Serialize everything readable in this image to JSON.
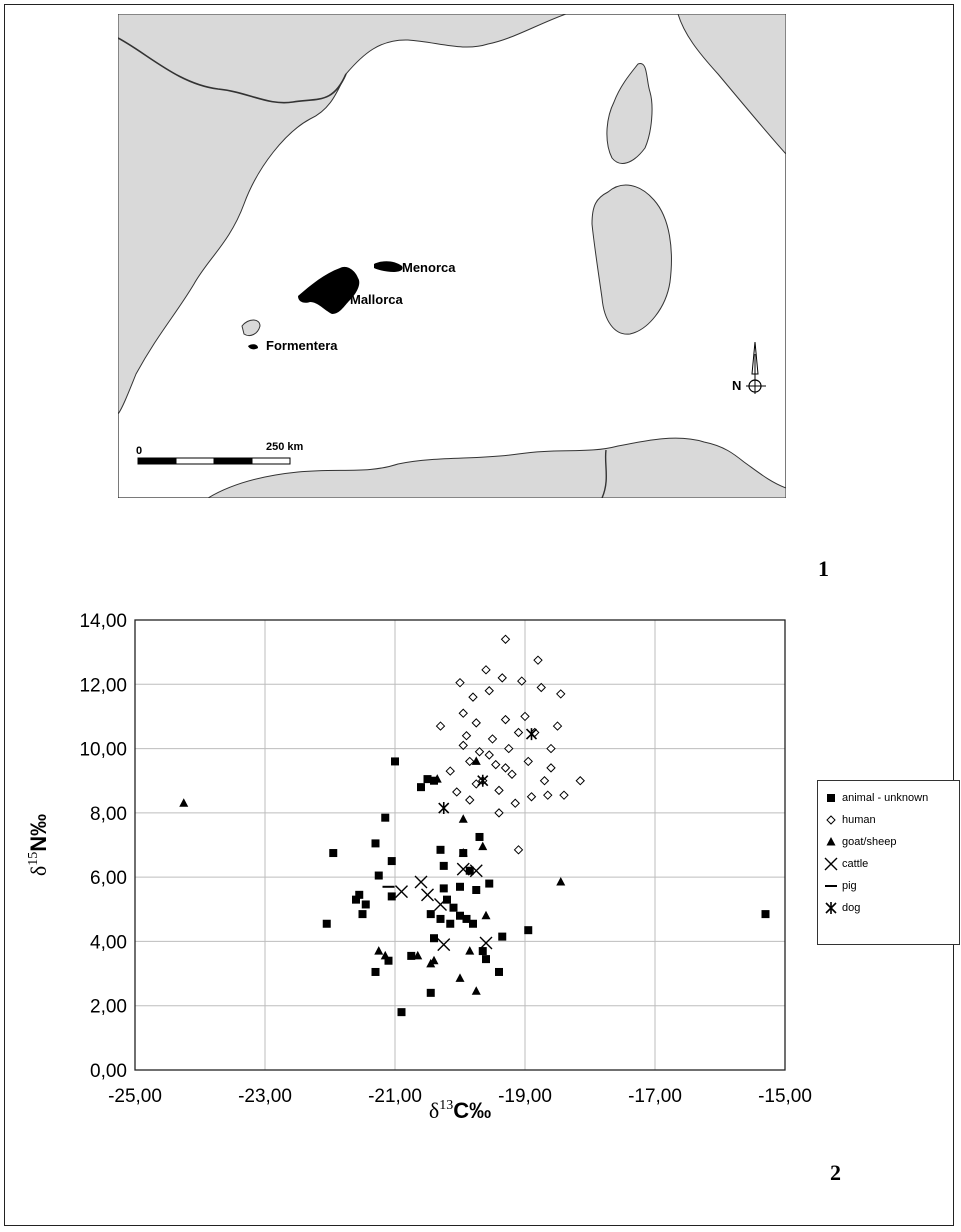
{
  "figure_labels": {
    "map": "1",
    "chart": "2"
  },
  "map": {
    "labels": {
      "menorca": "Menorca",
      "mallorca": "Mallorca",
      "formentera": "Formentera",
      "north": "N"
    },
    "scale_bar": {
      "start": "0",
      "end": "250 km"
    },
    "colors": {
      "land": "#d9d9d9",
      "islands": "#000000",
      "sea": "#ffffff"
    }
  },
  "chart_data": {
    "type": "scatter",
    "title": "",
    "xlabel": {
      "delta": "δ",
      "sup": "13",
      "rest": "C‰"
    },
    "ylabel": {
      "delta": "δ",
      "sup": "15",
      "rest": "N‰"
    },
    "xlim": [
      -25,
      -15
    ],
    "ylim": [
      0,
      14
    ],
    "xticks": [
      "-25,00",
      "-23,00",
      "-21,00",
      "-19,00",
      "-17,00",
      "-15,00"
    ],
    "yticks": [
      "0,00",
      "2,00",
      "4,00",
      "6,00",
      "8,00",
      "10,00",
      "12,00",
      "14,00"
    ],
    "grid": true,
    "legend_position": "right",
    "series": [
      {
        "name": "animal - unknown",
        "marker": "square",
        "points": [
          [
            -22.05,
            4.55
          ],
          [
            -21.95,
            6.75
          ],
          [
            -21.6,
            5.3
          ],
          [
            -21.55,
            5.45
          ],
          [
            -21.5,
            4.85
          ],
          [
            -21.45,
            5.15
          ],
          [
            -21.3,
            7.05
          ],
          [
            -21.25,
            6.05
          ],
          [
            -21.3,
            3.05
          ],
          [
            -21.15,
            7.85
          ],
          [
            -21.05,
            6.5
          ],
          [
            -21.05,
            5.4
          ],
          [
            -21.1,
            3.4
          ],
          [
            -21.0,
            9.6
          ],
          [
            -20.9,
            1.8
          ],
          [
            -20.75,
            3.55
          ],
          [
            -20.6,
            8.8
          ],
          [
            -20.5,
            9.05
          ],
          [
            -20.4,
            9.0
          ],
          [
            -20.45,
            4.85
          ],
          [
            -20.4,
            4.1
          ],
          [
            -20.45,
            2.4
          ],
          [
            -20.3,
            4.7
          ],
          [
            -20.25,
            5.65
          ],
          [
            -20.25,
            6.35
          ],
          [
            -20.2,
            5.3
          ],
          [
            -20.15,
            4.55
          ],
          [
            -20.1,
            5.05
          ],
          [
            -20.0,
            5.7
          ],
          [
            -20.0,
            4.8
          ],
          [
            -19.95,
            6.75
          ],
          [
            -19.9,
            4.7
          ],
          [
            -19.8,
            4.55
          ],
          [
            -19.75,
            5.6
          ],
          [
            -19.7,
            7.25
          ],
          [
            -19.65,
            3.7
          ],
          [
            -19.6,
            3.45
          ],
          [
            -19.55,
            5.8
          ],
          [
            -19.4,
            3.05
          ],
          [
            -19.35,
            4.15
          ],
          [
            -18.95,
            4.35
          ],
          [
            -15.3,
            4.85
          ],
          [
            -20.3,
            6.85
          ],
          [
            -19.85,
            6.2
          ]
        ]
      },
      {
        "name": "human",
        "marker": "diamond",
        "points": [
          [
            -20.3,
            10.7
          ],
          [
            -20.15,
            9.3
          ],
          [
            -20.05,
            8.65
          ],
          [
            -20.0,
            12.05
          ],
          [
            -19.95,
            11.1
          ],
          [
            -19.9,
            10.4
          ],
          [
            -19.85,
            9.6
          ],
          [
            -19.85,
            8.4
          ],
          [
            -19.8,
            11.6
          ],
          [
            -19.75,
            10.8
          ],
          [
            -19.7,
            9.9
          ],
          [
            -19.65,
            9.0
          ],
          [
            -19.6,
            12.45
          ],
          [
            -19.55,
            11.8
          ],
          [
            -19.5,
            10.3
          ],
          [
            -19.45,
            9.5
          ],
          [
            -19.4,
            8.7
          ],
          [
            -19.4,
            8.0
          ],
          [
            -19.35,
            12.2
          ],
          [
            -19.3,
            13.4
          ],
          [
            -19.3,
            10.9
          ],
          [
            -19.25,
            10.0
          ],
          [
            -19.2,
            9.2
          ],
          [
            -19.15,
            8.3
          ],
          [
            -19.1,
            6.85
          ],
          [
            -19.05,
            12.1
          ],
          [
            -19.0,
            11.0
          ],
          [
            -18.95,
            9.6
          ],
          [
            -18.9,
            8.5
          ],
          [
            -18.85,
            10.5
          ],
          [
            -18.8,
            12.75
          ],
          [
            -18.75,
            11.9
          ],
          [
            -18.7,
            9.0
          ],
          [
            -18.65,
            8.55
          ],
          [
            -18.6,
            9.4
          ],
          [
            -18.5,
            10.7
          ],
          [
            -18.45,
            11.7
          ],
          [
            -18.4,
            8.55
          ],
          [
            -18.15,
            9.0
          ],
          [
            -19.95,
            10.1
          ],
          [
            -19.75,
            8.9
          ],
          [
            -19.55,
            9.8
          ],
          [
            -19.3,
            9.4
          ],
          [
            -19.1,
            10.5
          ],
          [
            -18.6,
            10.0
          ]
        ]
      },
      {
        "name": "goat/sheep",
        "marker": "triangle",
        "points": [
          [
            -24.25,
            8.3
          ],
          [
            -21.25,
            3.7
          ],
          [
            -21.15,
            3.55
          ],
          [
            -20.65,
            3.55
          ],
          [
            -20.45,
            3.3
          ],
          [
            -20.4,
            3.4
          ],
          [
            -20.0,
            2.85
          ],
          [
            -19.95,
            7.8
          ],
          [
            -19.95,
            6.75
          ],
          [
            -19.85,
            3.7
          ],
          [
            -19.75,
            2.45
          ],
          [
            -19.65,
            6.95
          ],
          [
            -19.6,
            4.8
          ],
          [
            -18.45,
            5.85
          ],
          [
            -20.35,
            9.05
          ],
          [
            -19.75,
            9.6
          ]
        ]
      },
      {
        "name": "cattle",
        "marker": "x",
        "points": [
          [
            -20.9,
            5.55
          ],
          [
            -20.6,
            5.85
          ],
          [
            -20.5,
            5.45
          ],
          [
            -20.3,
            5.15
          ],
          [
            -20.25,
            3.9
          ],
          [
            -19.95,
            6.25
          ],
          [
            -19.75,
            6.2
          ],
          [
            -19.6,
            3.95
          ]
        ]
      },
      {
        "name": "pig",
        "marker": "dash",
        "points": [
          [
            -21.1,
            5.7
          ]
        ]
      },
      {
        "name": "dog",
        "marker": "asterisk",
        "points": [
          [
            -20.25,
            8.15
          ],
          [
            -19.65,
            9.0
          ],
          [
            -18.9,
            10.45
          ]
        ]
      }
    ]
  }
}
